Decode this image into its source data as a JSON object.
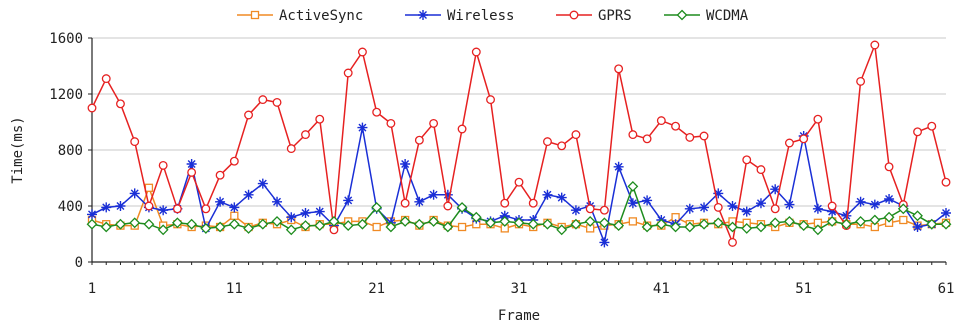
{
  "chart_data": {
    "type": "line",
    "xlabel": "Frame",
    "ylabel": "Time(ms)",
    "xlim": [
      1,
      61
    ],
    "ylim": [
      0,
      1600
    ],
    "x_ticks": [
      "1",
      "11",
      "21",
      "31",
      "41",
      "51",
      "61"
    ],
    "y_ticks": [
      "0",
      "400",
      "800",
      "1200",
      "1600"
    ],
    "grid": true,
    "legend_position": "top",
    "x": [
      1,
      2,
      3,
      4,
      5,
      6,
      7,
      8,
      9,
      10,
      11,
      12,
      13,
      14,
      15,
      16,
      17,
      18,
      19,
      20,
      21,
      22,
      23,
      24,
      25,
      26,
      27,
      28,
      29,
      30,
      31,
      32,
      33,
      34,
      35,
      36,
      37,
      38,
      39,
      40,
      41,
      42,
      43,
      44,
      45,
      46,
      47,
      48,
      49,
      50,
      51,
      52,
      53,
      54,
      55,
      56,
      57,
      58,
      59,
      60,
      61
    ],
    "series": [
      {
        "name": "ActiveSync",
        "color": "#f08a24",
        "marker": "square",
        "values": [
          300,
          270,
          260,
          260,
          530,
          260,
          270,
          250,
          260,
          250,
          330,
          250,
          280,
          270,
          300,
          250,
          270,
          270,
          290,
          290,
          250,
          290,
          300,
          260,
          300,
          260,
          250,
          270,
          270,
          240,
          270,
          250,
          280,
          250,
          270,
          240,
          260,
          270,
          290,
          260,
          260,
          320,
          270,
          280,
          270,
          290,
          280,
          270,
          250,
          280,
          270,
          280,
          290,
          270,
          270,
          250,
          280,
          300,
          260,
          270,
          280
        ]
      },
      {
        "name": "Wireless",
        "color": "#1a2fd6",
        "marker": "star",
        "values": [
          340,
          390,
          400,
          490,
          390,
          370,
          380,
          700,
          240,
          430,
          390,
          480,
          560,
          430,
          320,
          350,
          360,
          260,
          440,
          960,
          380,
          280,
          700,
          430,
          480,
          480,
          380,
          310,
          290,
          330,
          300,
          300,
          480,
          460,
          370,
          400,
          140,
          680,
          420,
          440,
          300,
          270,
          380,
          390,
          490,
          400,
          360,
          420,
          520,
          410,
          900,
          380,
          360,
          330,
          430,
          410,
          450,
          400,
          250,
          270,
          350
        ]
      },
      {
        "name": "GPRS",
        "color": "#e62121",
        "marker": "circle",
        "values": [
          1100,
          1310,
          1130,
          860,
          400,
          690,
          380,
          640,
          380,
          620,
          720,
          1050,
          1160,
          1140,
          810,
          910,
          1020,
          230,
          1350,
          1500,
          1070,
          990,
          420,
          870,
          990,
          400,
          950,
          1500,
          1160,
          420,
          570,
          420,
          860,
          830,
          910,
          380,
          370,
          1380,
          910,
          880,
          1010,
          970,
          890,
          900,
          390,
          140,
          730,
          660,
          380,
          850,
          880,
          1020,
          400,
          260,
          1290,
          1550,
          680,
          410,
          930,
          970,
          570
        ]
      },
      {
        "name": "WCDMA",
        "color": "#1e8c1e",
        "marker": "diamond",
        "values": [
          270,
          250,
          270,
          280,
          270,
          230,
          280,
          270,
          240,
          250,
          270,
          240,
          270,
          290,
          230,
          260,
          260,
          290,
          260,
          270,
          390,
          250,
          290,
          270,
          290,
          250,
          390,
          320,
          280,
          290,
          280,
          270,
          270,
          230,
          270,
          290,
          280,
          260,
          540,
          250,
          270,
          250,
          250,
          270,
          280,
          250,
          240,
          250,
          280,
          290,
          260,
          230,
          290,
          270,
          290,
          300,
          320,
          380,
          330,
          270,
          270
        ]
      }
    ]
  }
}
